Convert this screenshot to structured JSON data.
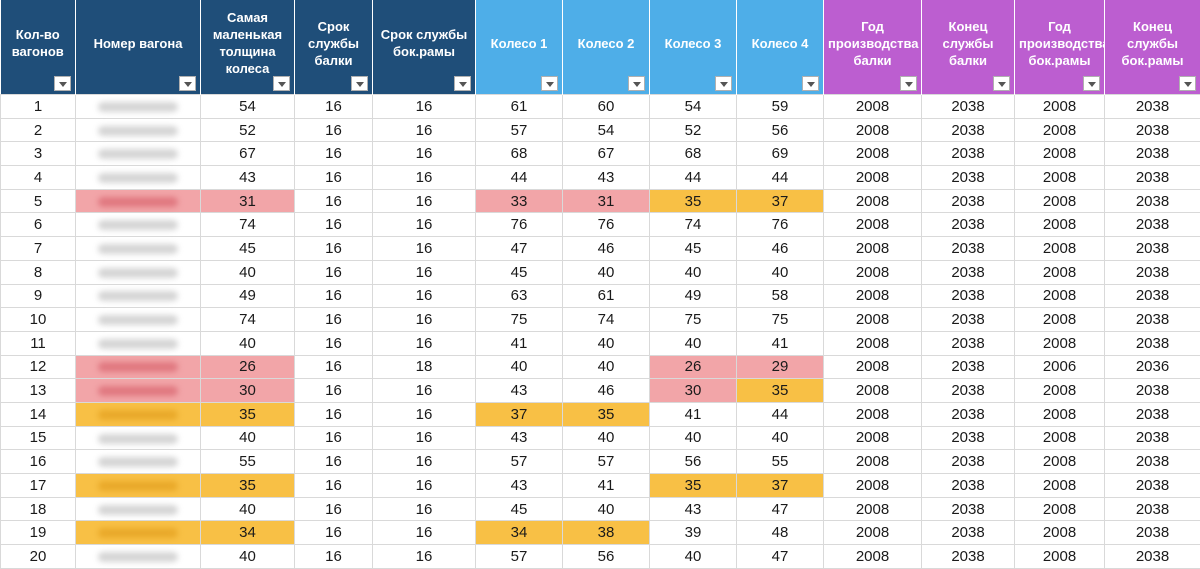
{
  "columns": [
    {
      "label": "Кол-во вагонов",
      "style": "dark"
    },
    {
      "label": "Номер вагона",
      "style": "dark"
    },
    {
      "label": "Самая маленькая толщина колеса",
      "style": "dark"
    },
    {
      "label": "Срок службы балки",
      "style": "dark"
    },
    {
      "label": "Срок службы бок.рамы",
      "style": "dark"
    },
    {
      "label": "Колесо 1",
      "style": "blue"
    },
    {
      "label": "Колесо 2",
      "style": "blue"
    },
    {
      "label": "Колесо 3",
      "style": "blue"
    },
    {
      "label": "Колесо 4",
      "style": "blue"
    },
    {
      "label": "Год производства балки",
      "style": "purple"
    },
    {
      "label": "Конец службы балки",
      "style": "purple"
    },
    {
      "label": "Год производства бок.рамы",
      "style": "purple"
    },
    {
      "label": "Конец службы бок.рамы",
      "style": "purple"
    }
  ],
  "header_colors": {
    "dark": "#1f4e79",
    "blue": "#4eaee8",
    "purple": "#bc5ed0"
  },
  "highlight_colors": {
    "red": "#f2a5a8",
    "orange": "#f8c045"
  },
  "rows": [
    {
      "cells": [
        "1",
        "",
        "54",
        "16",
        "16",
        "61",
        "60",
        "54",
        "59",
        "2008",
        "2038",
        "2008",
        "2038"
      ],
      "hl": {}
    },
    {
      "cells": [
        "2",
        "",
        "52",
        "16",
        "16",
        "57",
        "54",
        "52",
        "56",
        "2008",
        "2038",
        "2008",
        "2038"
      ],
      "hl": {}
    },
    {
      "cells": [
        "3",
        "",
        "67",
        "16",
        "16",
        "68",
        "67",
        "68",
        "69",
        "2008",
        "2038",
        "2008",
        "2038"
      ],
      "hl": {}
    },
    {
      "cells": [
        "4",
        "",
        "43",
        "16",
        "16",
        "44",
        "43",
        "44",
        "44",
        "2008",
        "2038",
        "2008",
        "2038"
      ],
      "hl": {}
    },
    {
      "cells": [
        "5",
        "",
        "31",
        "16",
        "16",
        "33",
        "31",
        "35",
        "37",
        "2008",
        "2038",
        "2008",
        "2038"
      ],
      "hl": {
        "1": "red",
        "2": "red",
        "5": "red",
        "6": "red",
        "7": "orange",
        "8": "orange"
      }
    },
    {
      "cells": [
        "6",
        "",
        "74",
        "16",
        "16",
        "76",
        "76",
        "74",
        "76",
        "2008",
        "2038",
        "2008",
        "2038"
      ],
      "hl": {}
    },
    {
      "cells": [
        "7",
        "",
        "45",
        "16",
        "16",
        "47",
        "46",
        "45",
        "46",
        "2008",
        "2038",
        "2008",
        "2038"
      ],
      "hl": {}
    },
    {
      "cells": [
        "8",
        "",
        "40",
        "16",
        "16",
        "45",
        "40",
        "40",
        "40",
        "2008",
        "2038",
        "2008",
        "2038"
      ],
      "hl": {}
    },
    {
      "cells": [
        "9",
        "",
        "49",
        "16",
        "16",
        "63",
        "61",
        "49",
        "58",
        "2008",
        "2038",
        "2008",
        "2038"
      ],
      "hl": {}
    },
    {
      "cells": [
        "10",
        "",
        "74",
        "16",
        "16",
        "75",
        "74",
        "75",
        "75",
        "2008",
        "2038",
        "2008",
        "2038"
      ],
      "hl": {}
    },
    {
      "cells": [
        "11",
        "",
        "40",
        "16",
        "16",
        "41",
        "40",
        "40",
        "41",
        "2008",
        "2038",
        "2008",
        "2038"
      ],
      "hl": {}
    },
    {
      "cells": [
        "12",
        "",
        "26",
        "16",
        "18",
        "40",
        "40",
        "26",
        "29",
        "2008",
        "2038",
        "2006",
        "2036"
      ],
      "hl": {
        "1": "red",
        "2": "red",
        "7": "red",
        "8": "red"
      }
    },
    {
      "cells": [
        "13",
        "",
        "30",
        "16",
        "16",
        "43",
        "46",
        "30",
        "35",
        "2008",
        "2038",
        "2008",
        "2038"
      ],
      "hl": {
        "1": "red",
        "2": "red",
        "7": "red",
        "8": "orange"
      }
    },
    {
      "cells": [
        "14",
        "",
        "35",
        "16",
        "16",
        "37",
        "35",
        "41",
        "44",
        "2008",
        "2038",
        "2008",
        "2038"
      ],
      "hl": {
        "1": "orange",
        "2": "orange",
        "5": "orange",
        "6": "orange"
      }
    },
    {
      "cells": [
        "15",
        "",
        "40",
        "16",
        "16",
        "43",
        "40",
        "40",
        "40",
        "2008",
        "2038",
        "2008",
        "2038"
      ],
      "hl": {}
    },
    {
      "cells": [
        "16",
        "",
        "55",
        "16",
        "16",
        "57",
        "57",
        "56",
        "55",
        "2008",
        "2038",
        "2008",
        "2038"
      ],
      "hl": {}
    },
    {
      "cells": [
        "17",
        "",
        "35",
        "16",
        "16",
        "43",
        "41",
        "35",
        "37",
        "2008",
        "2038",
        "2008",
        "2038"
      ],
      "hl": {
        "1": "orange",
        "2": "orange",
        "7": "orange",
        "8": "orange"
      }
    },
    {
      "cells": [
        "18",
        "",
        "40",
        "16",
        "16",
        "45",
        "40",
        "43",
        "47",
        "2008",
        "2038",
        "2008",
        "2038"
      ],
      "hl": {}
    },
    {
      "cells": [
        "19",
        "",
        "34",
        "16",
        "16",
        "34",
        "38",
        "39",
        "48",
        "2008",
        "2038",
        "2008",
        "2038"
      ],
      "hl": {
        "1": "orange",
        "2": "orange",
        "5": "orange",
        "6": "orange"
      }
    },
    {
      "cells": [
        "20",
        "",
        "40",
        "16",
        "16",
        "57",
        "56",
        "40",
        "47",
        "2008",
        "2038",
        "2008",
        "2038"
      ],
      "hl": {}
    }
  ]
}
